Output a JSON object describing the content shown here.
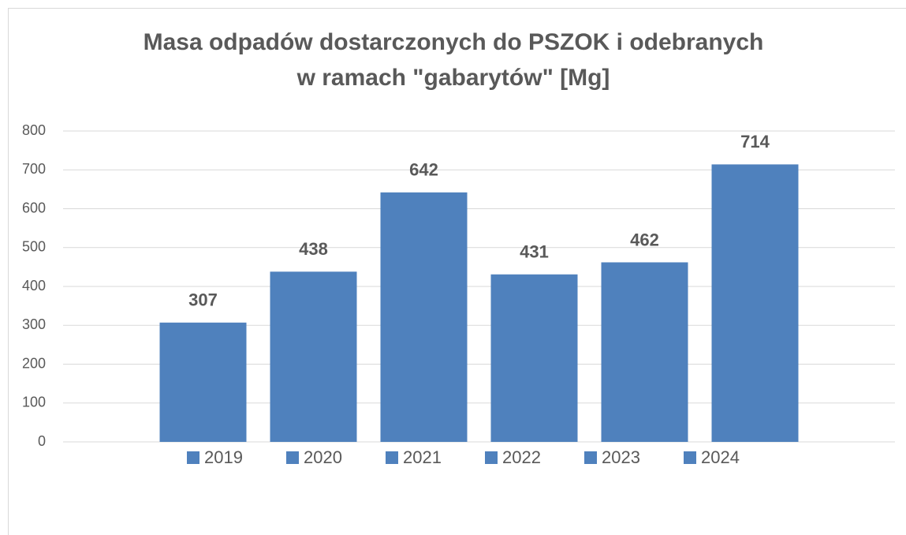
{
  "chart_data": {
    "type": "bar",
    "title": [
      "Masa odpadów dostarczonych do PSZOK i odebranych",
      "w ramach \"gabarytów\" [Mg]"
    ],
    "categories": [
      null
    ],
    "series": [
      {
        "name": "2019",
        "color": "#4f81bd",
        "values": [
          307
        ]
      },
      {
        "name": "2020",
        "color": "#4f81bd",
        "values": [
          438
        ]
      },
      {
        "name": "2021",
        "color": "#4f81bd",
        "values": [
          642
        ]
      },
      {
        "name": "2022",
        "color": "#4f81bd",
        "values": [
          431
        ]
      },
      {
        "name": "2023",
        "color": "#4f81bd",
        "values": [
          462
        ]
      },
      {
        "name": "2024",
        "color": "#4f81bd",
        "values": [
          714
        ]
      }
    ],
    "ylim": [
      0,
      800
    ],
    "yticks": [
      0,
      100,
      200,
      300,
      400,
      500,
      600,
      700,
      800
    ],
    "grid": true,
    "legend": "bottom"
  }
}
